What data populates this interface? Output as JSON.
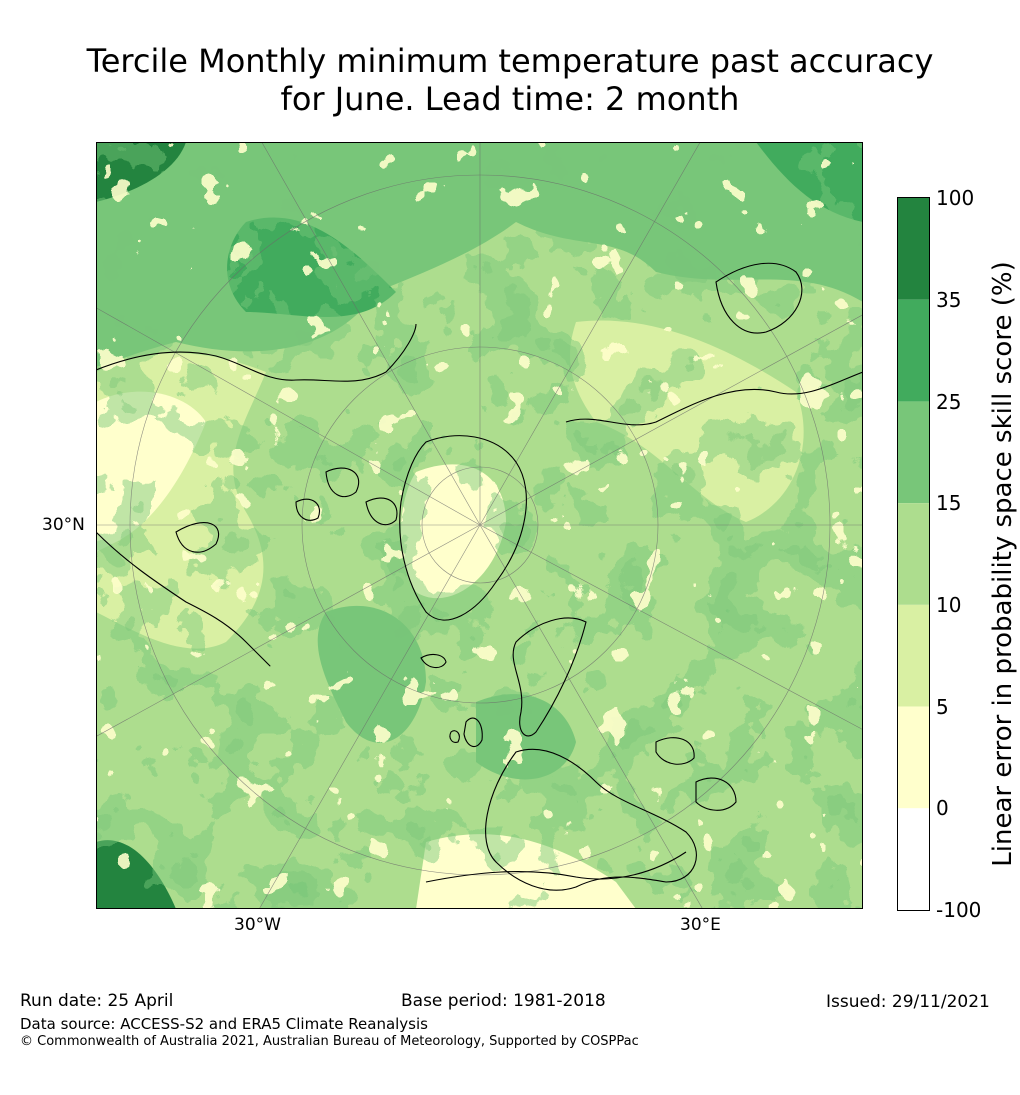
{
  "title": {
    "line1": "Tercile Monthly minimum temperature past accuracy",
    "line2": "for June. Lead time: 2 month"
  },
  "map": {
    "projection": "north-polar-stereographic",
    "lat_labels": [
      "30°N"
    ],
    "lon_labels": [
      "30°W",
      "30°E"
    ],
    "graticule_lat_deg": [
      30,
      45,
      60,
      75
    ],
    "region": "Northern Hemisphere (Atlantic / Europe sector)"
  },
  "colorbar": {
    "label": "Linear error in probability space skill score (%)",
    "ticks": [
      "100",
      "35",
      "25",
      "15",
      "10",
      "5",
      "0",
      "-100"
    ],
    "bins": [
      {
        "range": "35 to 100",
        "color": "#23843f"
      },
      {
        "range": "25 to 35",
        "color": "#41ab5d"
      },
      {
        "range": "15 to 25",
        "color": "#78c679"
      },
      {
        "range": "10 to 15",
        "color": "#addd8e"
      },
      {
        "range": "5 to 10",
        "color": "#d9f0a3"
      },
      {
        "range": "0 to 5",
        "color": "#ffffcc"
      },
      {
        "range": "-100 to 0",
        "color": "#ffffff"
      }
    ]
  },
  "footer": {
    "run_date": "Run date: 25 April",
    "base_period": "Base period: 1981-2018",
    "issued": "Issued: 29/11/2021",
    "data_source": "Data source: ACCESS-S2 and ERA5 Climate Reanalysis",
    "copyright": "© Commonwealth of Australia 2021, Australian Bureau of Meteorology, Supported by COSPPac"
  }
}
